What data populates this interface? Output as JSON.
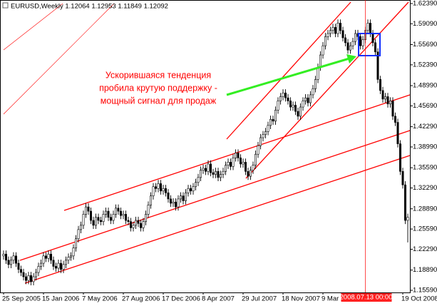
{
  "chart_data": {
    "type": "candlestick",
    "title": "EURUSD,Weekly  1.12064 1.12953 1.11849 1.12092",
    "annotation": [
      "Ускорившаяся тенденция",
      "пробила крутую поддержку -",
      "мощный сигнал для продаж"
    ],
    "categories": [
      "25 Sep 2005",
      null,
      null,
      null,
      null,
      null,
      null,
      null,
      null,
      null,
      null,
      null,
      null,
      null,
      null,
      null,
      "15 Jan 2006",
      null,
      null,
      null,
      null,
      null,
      null,
      null,
      null,
      null,
      null,
      null,
      null,
      null,
      null,
      null,
      "7 May 2006",
      null,
      null,
      null,
      null,
      null,
      null,
      null,
      null,
      null,
      null,
      null,
      null,
      null,
      null,
      null,
      "27 Aug 2006",
      null,
      null,
      null,
      null,
      null,
      null,
      null,
      null,
      null,
      null,
      null,
      null,
      null,
      null,
      null,
      "17 Dec 2006",
      null,
      null,
      null,
      null,
      null,
      null,
      null,
      null,
      null,
      null,
      null,
      null,
      null,
      null,
      null,
      "8 Apr 2007",
      null,
      null,
      null,
      null,
      null,
      null,
      null,
      null,
      null,
      null,
      null,
      null,
      null,
      null,
      null,
      "29 Jul 2007",
      null,
      null,
      null,
      null,
      null,
      null,
      null,
      null,
      null,
      null,
      null,
      null,
      null,
      null,
      null,
      "18 Nov 2007",
      null,
      null,
      null,
      null,
      null,
      null,
      null,
      null,
      null,
      null,
      null,
      null,
      null,
      null,
      null,
      "9 Mar 2008",
      null,
      null,
      null,
      null,
      null,
      null,
      null,
      null,
      null,
      null,
      null,
      null,
      null,
      null,
      null,
      null,
      "2008.07.13 00:00",
      null,
      null,
      null,
      null,
      null,
      null,
      null,
      null,
      null,
      null,
      null,
      null,
      null,
      null,
      "19 Oct 2008",
      null,
      null
    ],
    "crosshair": "2008.07.13 00:00",
    "open": [
      1.212,
      1.215,
      1.205,
      1.198,
      1.205,
      1.212,
      1.2,
      1.19,
      1.185,
      1.178,
      1.172,
      1.18,
      1.17,
      1.178,
      1.185,
      1.195,
      1.2,
      1.212,
      1.208,
      1.215,
      1.205,
      1.195,
      1.192,
      1.2,
      1.19,
      1.198,
      1.205,
      1.21,
      1.212,
      1.225,
      1.24,
      1.255,
      1.262,
      1.28,
      1.292,
      1.285,
      1.27,
      1.262,
      1.275,
      1.27,
      1.268,
      1.28,
      1.285,
      1.275,
      1.27,
      1.28,
      1.29,
      1.285,
      1.278,
      1.28,
      1.27,
      1.268,
      1.258,
      1.262,
      1.27,
      1.265,
      1.258,
      1.268,
      1.28,
      1.295,
      1.31,
      1.325,
      1.322,
      1.33,
      1.318,
      1.322,
      1.315,
      1.305,
      1.298,
      1.3,
      1.292,
      1.305,
      1.31,
      1.302,
      1.315,
      1.322,
      1.318,
      1.325,
      1.332,
      1.34,
      1.352,
      1.355,
      1.35,
      1.362,
      1.348,
      1.345,
      1.35,
      1.34,
      1.345,
      1.35,
      1.36,
      1.365,
      1.358,
      1.372,
      1.38,
      1.372,
      1.362,
      1.365,
      1.35,
      1.342,
      1.352,
      1.36,
      1.378,
      1.392,
      1.405,
      1.41,
      1.415,
      1.425,
      1.435,
      1.432,
      1.45,
      1.465,
      1.472,
      1.478,
      1.47,
      1.465,
      1.455,
      1.458,
      1.448,
      1.44,
      1.455,
      1.465,
      1.47,
      1.462,
      1.475,
      1.485,
      1.5,
      1.52,
      1.54,
      1.555,
      1.57,
      1.575,
      1.58,
      1.585,
      1.575,
      1.592,
      1.58,
      1.568,
      1.56,
      1.548,
      1.555,
      1.562,
      1.575,
      1.57,
      1.555,
      1.565,
      1.58,
      1.592,
      1.575,
      1.56,
      1.545,
      1.5,
      1.482,
      1.468,
      1.472,
      1.46,
      1.465,
      1.44,
      1.43,
      1.395,
      1.35,
      1.328,
      1.27
    ],
    "high": [
      1.221,
      1.221,
      1.211,
      1.211,
      1.218,
      1.218,
      1.206,
      1.196,
      1.191,
      1.184,
      1.186,
      1.186,
      1.184,
      1.191,
      1.201,
      1.206,
      1.218,
      1.218,
      1.221,
      1.221,
      1.211,
      1.201,
      1.206,
      1.206,
      1.204,
      1.211,
      1.216,
      1.218,
      1.231,
      1.246,
      1.261,
      1.268,
      1.286,
      1.298,
      1.298,
      1.291,
      1.276,
      1.281,
      1.281,
      1.276,
      1.286,
      1.291,
      1.291,
      1.281,
      1.286,
      1.296,
      1.296,
      1.291,
      1.286,
      1.286,
      1.276,
      1.274,
      1.268,
      1.276,
      1.276,
      1.271,
      1.274,
      1.286,
      1.301,
      1.316,
      1.331,
      1.331,
      1.336,
      1.336,
      1.328,
      1.328,
      1.321,
      1.311,
      1.306,
      1.306,
      1.311,
      1.316,
      1.316,
      1.321,
      1.328,
      1.328,
      1.331,
      1.338,
      1.346,
      1.358,
      1.361,
      1.361,
      1.368,
      1.368,
      1.354,
      1.356,
      1.356,
      1.351,
      1.356,
      1.366,
      1.371,
      1.371,
      1.378,
      1.386,
      1.386,
      1.378,
      1.371,
      1.371,
      1.356,
      1.358,
      1.366,
      1.384,
      1.398,
      1.411,
      1.416,
      1.421,
      1.431,
      1.441,
      1.441,
      1.456,
      1.471,
      1.478,
      1.484,
      1.484,
      1.476,
      1.471,
      1.464,
      1.464,
      1.454,
      1.461,
      1.471,
      1.476,
      1.476,
      1.481,
      1.491,
      1.506,
      1.526,
      1.546,
      1.561,
      1.576,
      1.581,
      1.586,
      1.591,
      1.591,
      1.598,
      1.598,
      1.586,
      1.574,
      1.566,
      1.561,
      1.568,
      1.581,
      1.581,
      1.576,
      1.571,
      1.586,
      1.598,
      1.598,
      1.581,
      1.566,
      1.551,
      1.506,
      1.488,
      1.478,
      1.478,
      1.471,
      1.471,
      1.446,
      1.436,
      1.401,
      1.356,
      1.334,
      1.281
    ],
    "low": [
      1.206,
      1.199,
      1.192,
      1.192,
      1.199,
      1.194,
      1.184,
      1.179,
      1.172,
      1.166,
      1.166,
      1.164,
      1.164,
      1.172,
      1.179,
      1.189,
      1.194,
      1.202,
      1.202,
      1.199,
      1.189,
      1.186,
      1.186,
      1.184,
      1.184,
      1.192,
      1.199,
      1.204,
      1.206,
      1.219,
      1.234,
      1.249,
      1.256,
      1.274,
      1.279,
      1.264,
      1.256,
      1.256,
      1.264,
      1.262,
      1.262,
      1.274,
      1.269,
      1.264,
      1.264,
      1.274,
      1.279,
      1.272,
      1.272,
      1.264,
      1.262,
      1.252,
      1.252,
      1.256,
      1.259,
      1.252,
      1.252,
      1.262,
      1.274,
      1.289,
      1.304,
      1.316,
      1.316,
      1.312,
      1.312,
      1.309,
      1.299,
      1.292,
      1.292,
      1.286,
      1.286,
      1.299,
      1.296,
      1.296,
      1.309,
      1.312,
      1.312,
      1.319,
      1.326,
      1.334,
      1.346,
      1.344,
      1.344,
      1.342,
      1.339,
      1.339,
      1.334,
      1.334,
      1.339,
      1.344,
      1.354,
      1.352,
      1.352,
      1.366,
      1.366,
      1.356,
      1.356,
      1.344,
      1.336,
      1.336,
      1.346,
      1.354,
      1.372,
      1.386,
      1.399,
      1.404,
      1.409,
      1.419,
      1.426,
      1.426,
      1.444,
      1.459,
      1.466,
      1.464,
      1.459,
      1.449,
      1.449,
      1.442,
      1.434,
      1.434,
      1.449,
      1.459,
      1.456,
      1.456,
      1.469,
      1.479,
      1.494,
      1.514,
      1.534,
      1.549,
      1.564,
      1.569,
      1.574,
      1.569,
      1.569,
      1.574,
      1.562,
      1.554,
      1.542,
      1.542,
      1.549,
      1.556,
      1.564,
      1.549,
      1.549,
      1.559,
      1.574,
      1.569,
      1.554,
      1.539,
      1.494,
      1.476,
      1.462,
      1.462,
      1.454,
      1.454,
      1.434,
      1.424,
      1.389,
      1.344,
      1.322,
      1.264,
      1.234
    ],
    "close": [
      1.215,
      1.205,
      1.198,
      1.205,
      1.212,
      1.2,
      1.19,
      1.185,
      1.178,
      1.172,
      1.18,
      1.17,
      1.178,
      1.185,
      1.195,
      1.2,
      1.212,
      1.208,
      1.215,
      1.205,
      1.195,
      1.192,
      1.2,
      1.19,
      1.198,
      1.205,
      1.21,
      1.212,
      1.225,
      1.24,
      1.255,
      1.262,
      1.28,
      1.292,
      1.285,
      1.27,
      1.262,
      1.275,
      1.27,
      1.268,
      1.28,
      1.285,
      1.275,
      1.27,
      1.28,
      1.29,
      1.285,
      1.278,
      1.28,
      1.27,
      1.268,
      1.258,
      1.262,
      1.27,
      1.265,
      1.258,
      1.268,
      1.28,
      1.295,
      1.31,
      1.325,
      1.322,
      1.33,
      1.318,
      1.322,
      1.315,
      1.305,
      1.298,
      1.3,
      1.292,
      1.305,
      1.31,
      1.302,
      1.315,
      1.322,
      1.318,
      1.325,
      1.332,
      1.34,
      1.352,
      1.355,
      1.35,
      1.362,
      1.348,
      1.345,
      1.35,
      1.34,
      1.345,
      1.35,
      1.36,
      1.365,
      1.358,
      1.372,
      1.38,
      1.372,
      1.362,
      1.365,
      1.35,
      1.342,
      1.352,
      1.36,
      1.378,
      1.392,
      1.405,
      1.41,
      1.415,
      1.425,
      1.435,
      1.432,
      1.45,
      1.465,
      1.472,
      1.478,
      1.47,
      1.465,
      1.455,
      1.458,
      1.448,
      1.44,
      1.455,
      1.465,
      1.47,
      1.462,
      1.475,
      1.485,
      1.5,
      1.52,
      1.54,
      1.555,
      1.57,
      1.575,
      1.58,
      1.585,
      1.575,
      1.592,
      1.58,
      1.568,
      1.56,
      1.548,
      1.555,
      1.562,
      1.575,
      1.57,
      1.555,
      1.565,
      1.58,
      1.592,
      1.575,
      1.56,
      1.545,
      1.5,
      1.482,
      1.468,
      1.472,
      1.46,
      1.465,
      1.44,
      1.43,
      1.395,
      1.35,
      1.328,
      1.27,
      1.275
    ],
    "up_color": "#ffffff",
    "down_color": "#000000",
    "wick_color": "#000000",
    "ylim": [
      1.1524,
      1.6297
    ],
    "yticks": [
      {
        "value": 1.6239,
        "label": "1.62390"
      },
      {
        "value": 1.5909,
        "label": "1.59090"
      },
      {
        "value": 1.5569,
        "label": "1.55690"
      },
      {
        "value": 1.5239,
        "label": "1.52390"
      },
      {
        "value": 1.4899,
        "label": "1.48990"
      },
      {
        "value": 1.4569,
        "label": "1.45690"
      },
      {
        "value": 1.4229,
        "label": "1.42290"
      },
      {
        "value": 1.3899,
        "label": "1.38990"
      },
      {
        "value": 1.3559,
        "label": "1.35590"
      },
      {
        "value": 1.3229,
        "label": "1.32290"
      },
      {
        "value": 1.2889,
        "label": "1.28890"
      },
      {
        "value": 1.2559,
        "label": "1.25590"
      },
      {
        "value": 1.2229,
        "label": "1.22290"
      },
      {
        "value": 1.1889,
        "label": "1.18890"
      },
      {
        "value": 1.1559,
        "label": "1.15590"
      }
    ],
    "grid": false
  }
}
